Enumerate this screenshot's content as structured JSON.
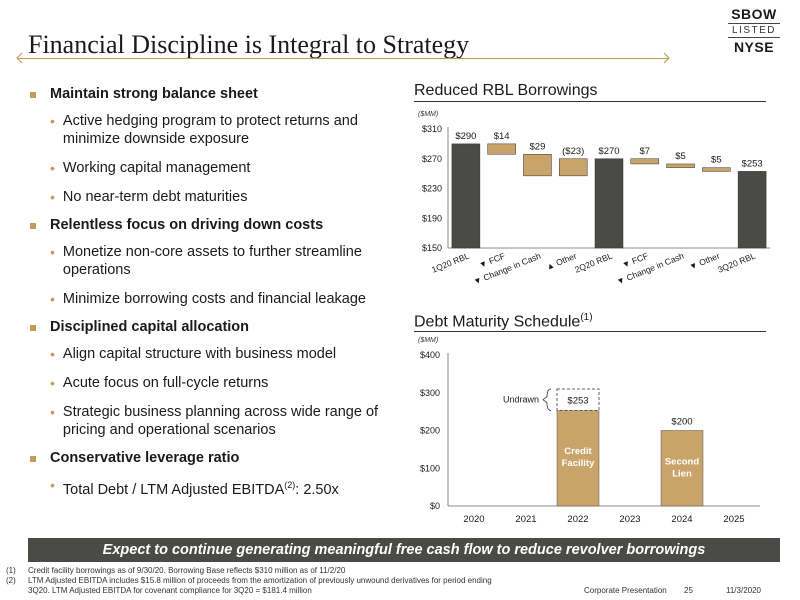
{
  "header": {
    "title": "Financial Discipline is Integral to Strategy",
    "logo": {
      "line1": "SBOW",
      "line2": "LISTED",
      "line3": "NYSE"
    }
  },
  "bullets": [
    {
      "text": "Maintain strong balance sheet",
      "subs": [
        "Active hedging program to protect returns and minimize downside exposure",
        "Working capital management",
        "No near-term debt maturities"
      ]
    },
    {
      "text": "Relentless focus on driving down costs",
      "subs": [
        "Monetize non-core assets to further streamline operations",
        "Minimize borrowing costs and financial leakage"
      ]
    },
    {
      "text": "Disciplined capital allocation",
      "subs": [
        "Align capital structure with business model",
        "Acute focus on full-cycle returns",
        "Strategic business planning across wide range of pricing and operational scenarios"
      ]
    },
    {
      "text": "Conservative leverage ratio",
      "subs": [
        "Total Debt / LTM Adjusted EBITDA"
      ]
    }
  ],
  "leverage": {
    "sup": "(2)",
    "value": ": 2.50x"
  },
  "charts": {
    "rbl": {
      "title": "Reduced RBL Borrowings",
      "unit": "($MM)"
    },
    "debt": {
      "title": "Debt Maturity Schedule",
      "title_sup": "(1)",
      "unit": "($MM)",
      "undrawn_label": "Undrawn",
      "undrawn_value": "$253",
      "credit_label": [
        "Credit",
        "Facility"
      ],
      "lien_label": [
        "Second",
        "Lien"
      ]
    }
  },
  "chart_data": [
    {
      "type": "bar",
      "subtype": "waterfall",
      "title": "Reduced RBL Borrowings",
      "ylabel": "($MM)",
      "ylim": [
        150,
        310
      ],
      "yticks": [
        "$150",
        "$190",
        "$230",
        "$270",
        "$310"
      ],
      "categories": [
        "1Q20 RBL",
        "▼ FCF",
        "▼ Change in Cash",
        "▲ Other",
        "2Q20 RBL",
        "▼ FCF",
        "▼ Change in Cash",
        "▼ Other",
        "3Q20 RBL"
      ],
      "bars": [
        {
          "start": 150,
          "end": 290,
          "label": "$290",
          "kind": "total"
        },
        {
          "start": 290,
          "end": 276,
          "label": "$14",
          "kind": "delta"
        },
        {
          "start": 276,
          "end": 247,
          "label": "$29",
          "kind": "delta"
        },
        {
          "start": 247,
          "end": 270,
          "label": "($23)",
          "kind": "delta"
        },
        {
          "start": 150,
          "end": 270,
          "label": "$270",
          "kind": "total"
        },
        {
          "start": 270,
          "end": 263,
          "label": "$7",
          "kind": "delta"
        },
        {
          "start": 263,
          "end": 258,
          "label": "$5",
          "kind": "delta"
        },
        {
          "start": 258,
          "end": 253,
          "label": "$5",
          "kind": "delta"
        },
        {
          "start": 150,
          "end": 253,
          "label": "$253",
          "kind": "total"
        }
      ],
      "colors": {
        "total": "#4a4a46",
        "delta": "#c8a46a"
      }
    },
    {
      "type": "bar",
      "title": "Debt Maturity Schedule",
      "ylabel": "($MM)",
      "ylim": [
        0,
        400
      ],
      "yticks": [
        "$0",
        "$100",
        "$200",
        "$300",
        "$400"
      ],
      "categories": [
        "2020",
        "2021",
        "2022",
        "2023",
        "2024",
        "2025"
      ],
      "series": [
        {
          "name": "Credit Facility",
          "values": [
            0,
            0,
            253,
            0,
            0,
            0
          ]
        },
        {
          "name": "Second Lien",
          "values": [
            0,
            0,
            0,
            0,
            200,
            0
          ]
        }
      ],
      "undrawn": {
        "category": "2022",
        "from": 253,
        "to": 310,
        "label": "$253"
      },
      "data_labels": {
        "2024": "$200"
      },
      "colors": {
        "bar": "#c8a46a"
      }
    }
  ],
  "banner": "Expect to continue generating meaningful free cash flow to reduce revolver borrowings",
  "footnotes": [
    {
      "num": "(1)",
      "text": "Credit facility borrowings as of 9/30/20. Borrowing Base reflects $310 million as of 11/2/20"
    },
    {
      "num": "(2)",
      "text": "LTM Adjusted EBITDA includes $15.8 million of proceeds from the amortization of previously unwound derivatives for period ending"
    },
    {
      "num": "",
      "text": "3Q20. LTM Adjusted EBITDA for covenant compliance for 3Q20 = $181.4 million"
    }
  ],
  "footer": {
    "label": "Corporate Presentation",
    "page": "25",
    "date": "11/3/2020"
  }
}
